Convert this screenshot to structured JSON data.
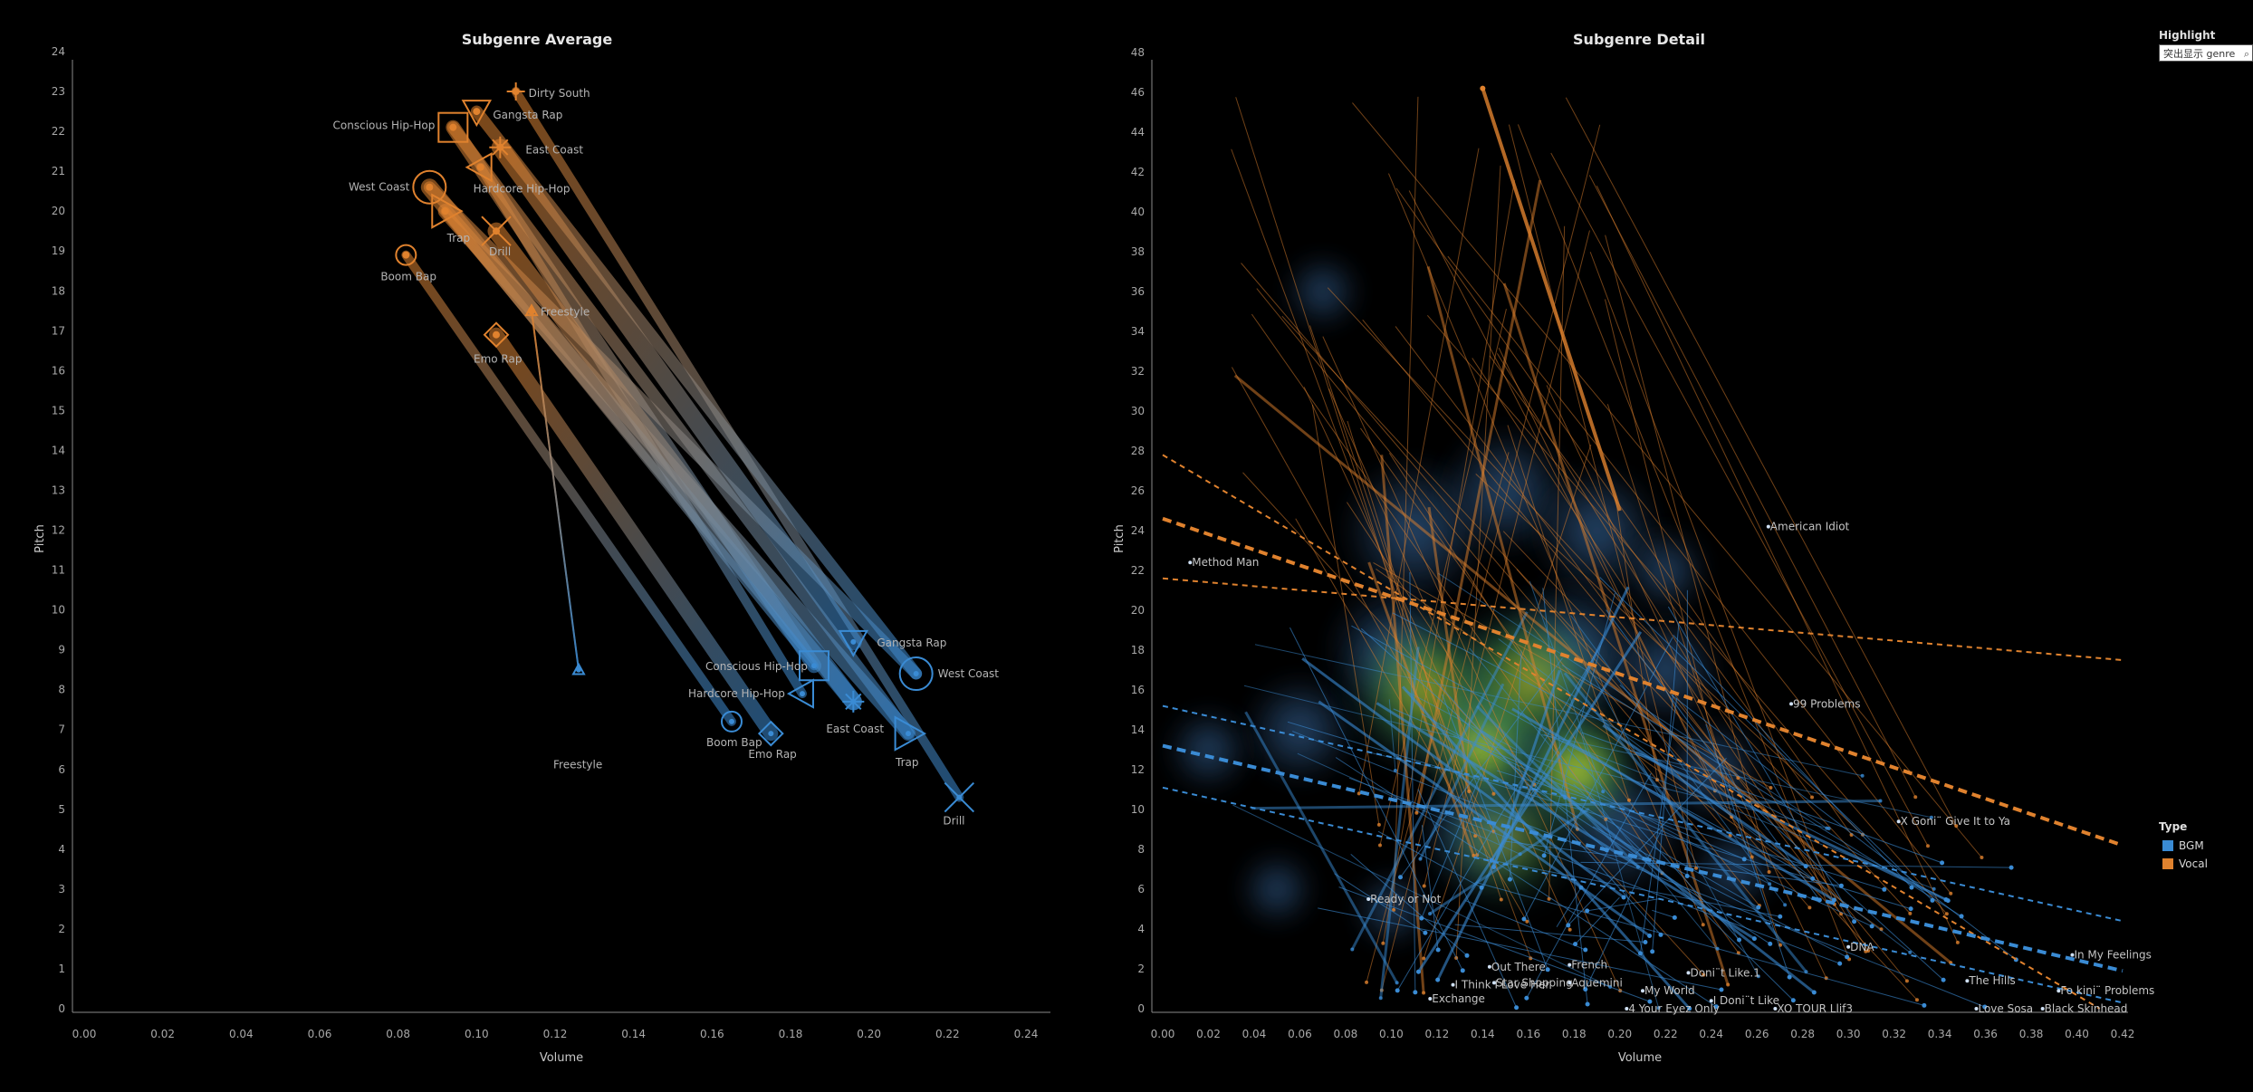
{
  "highlight": {
    "title": "Highlight",
    "placeholder": "突出显示 genre"
  },
  "legend": {
    "title": "Type",
    "items": [
      {
        "label": "BGM",
        "color": "#3a8bd4"
      },
      {
        "label": "Vocal",
        "color": "#e0822e"
      }
    ]
  },
  "colors": {
    "bgm": "#3a8bd4",
    "vocal": "#e0822e",
    "axis": "#8a8a8a",
    "background": "#000000"
  },
  "chart_data": [
    {
      "type": "scatter",
      "title": "Subgenre Average",
      "xlabel": "Volume",
      "ylabel": "Pitch",
      "xlim": [
        0,
        0.24
      ],
      "ylim": [
        0,
        24
      ],
      "x_ticks": [
        "0.00",
        "0.02",
        "0.04",
        "0.06",
        "0.08",
        "0.10",
        "0.12",
        "0.14",
        "0.16",
        "0.18",
        "0.20",
        "0.22",
        "0.24"
      ],
      "y_ticks": [
        "0",
        "1",
        "2",
        "3",
        "4",
        "5",
        "6",
        "7",
        "8",
        "9",
        "10",
        "11",
        "12",
        "13",
        "14",
        "15",
        "16",
        "17",
        "18",
        "19",
        "20",
        "21",
        "22",
        "23",
        "24"
      ],
      "series": [
        {
          "name": "Vocal",
          "points": [
            {
              "label": "Dirty South",
              "x": 0.11,
              "y": 23.0,
              "marker": "plus"
            },
            {
              "label": "Gangsta Rap",
              "x": 0.1,
              "y": 22.5,
              "marker": "triangle-down"
            },
            {
              "label": "Conscious Hip-Hop",
              "x": 0.094,
              "y": 22.1,
              "marker": "square"
            },
            {
              "label": "East Coast",
              "x": 0.106,
              "y": 21.6,
              "marker": "star"
            },
            {
              "label": "Hardcore Hip-Hop",
              "x": 0.101,
              "y": 21.1,
              "marker": "triangle-left"
            },
            {
              "label": "West Coast",
              "x": 0.088,
              "y": 20.6,
              "marker": "circle"
            },
            {
              "label": "Trap",
              "x": 0.092,
              "y": 20.0,
              "marker": "triangle-right"
            },
            {
              "label": "Drill",
              "x": 0.105,
              "y": 19.5,
              "marker": "x"
            },
            {
              "label": "Boom Bap",
              "x": 0.082,
              "y": 18.9,
              "marker": "circle"
            },
            {
              "label": "Freestyle",
              "x": 0.114,
              "y": 17.5,
              "marker": "triangle-up"
            },
            {
              "label": "Emo Rap",
              "x": 0.105,
              "y": 16.9,
              "marker": "diamond"
            }
          ]
        },
        {
          "name": "BGM",
          "points": [
            {
              "label": "Gangsta Rap",
              "x": 0.196,
              "y": 9.2,
              "marker": "triangle-down"
            },
            {
              "label": "Conscious Hip-Hop",
              "x": 0.186,
              "y": 8.6,
              "marker": "square"
            },
            {
              "label": "West Coast",
              "x": 0.212,
              "y": 8.4,
              "marker": "circle"
            },
            {
              "label": "Hardcore Hip-Hop",
              "x": 0.183,
              "y": 7.9,
              "marker": "triangle-left"
            },
            {
              "label": "East Coast",
              "x": 0.196,
              "y": 7.7,
              "marker": "star"
            },
            {
              "label": "Boom Bap",
              "x": 0.165,
              "y": 7.2,
              "marker": "circle"
            },
            {
              "label": "Emo Rap",
              "x": 0.175,
              "y": 6.9,
              "marker": "diamond"
            },
            {
              "label": "Trap",
              "x": 0.21,
              "y": 6.9,
              "marker": "triangle-right"
            },
            {
              "label": "Drill",
              "x": 0.223,
              "y": 5.3,
              "marker": "x"
            },
            {
              "label": "Freestyle",
              "x": 0.126,
              "y": 8.5,
              "marker": "triangle-up"
            }
          ]
        }
      ],
      "connections": [
        [
          "Dirty South",
          "Drill"
        ],
        [
          "Gangsta Rap",
          "West Coast"
        ],
        [
          "Conscious Hip-Hop",
          "Conscious Hip-Hop"
        ],
        [
          "East Coast",
          "Gangsta Rap"
        ],
        [
          "Hardcore Hip-Hop",
          "Hardcore Hip-Hop"
        ],
        [
          "West Coast",
          "West Coast"
        ],
        [
          "Trap",
          "Trap"
        ],
        [
          "Drill",
          "East Coast"
        ],
        [
          "Boom Bap",
          "Boom Bap"
        ],
        [
          "Freestyle",
          "Freestyle"
        ],
        [
          "Emo Rap",
          "Emo Rap"
        ],
        [
          "West Coast",
          "East Coast"
        ],
        [
          "Trap",
          "Conscious Hip-Hop"
        ],
        [
          "Conscious Hip-Hop",
          "Trap"
        ]
      ]
    },
    {
      "type": "scatter",
      "title": "Subgenre Detail",
      "xlabel": "Volume",
      "ylabel": "Pitch",
      "xlim": [
        0,
        0.42
      ],
      "ylim": [
        0,
        48
      ],
      "x_ticks": [
        "0.00",
        "0.02",
        "0.04",
        "0.06",
        "0.08",
        "0.10",
        "0.12",
        "0.14",
        "0.16",
        "0.18",
        "0.20",
        "0.22",
        "0.24",
        "0.26",
        "0.28",
        "0.30",
        "0.32",
        "0.34",
        "0.36",
        "0.38",
        "0.40",
        "0.42"
      ],
      "y_ticks": [
        "0",
        "2",
        "4",
        "6",
        "8",
        "10",
        "12",
        "14",
        "16",
        "18",
        "20",
        "22",
        "24",
        "26",
        "28",
        "30",
        "32",
        "34",
        "36",
        "38",
        "40",
        "42",
        "44",
        "46",
        "48"
      ],
      "labeled_points": [
        {
          "label": "American Idiot",
          "x": 0.265,
          "y": 24.2
        },
        {
          "label": "Method Man",
          "x": 0.012,
          "y": 22.4
        },
        {
          "label": "99 Problems",
          "x": 0.275,
          "y": 15.3
        },
        {
          "label": "X Goni¨ Give It to Ya",
          "x": 0.322,
          "y": 9.4
        },
        {
          "label": "Ready or Not",
          "x": 0.09,
          "y": 5.5
        },
        {
          "label": "DNA",
          "x": 0.3,
          "y": 3.1
        },
        {
          "label": "In My Feelings",
          "x": 0.398,
          "y": 2.7
        },
        {
          "label": "Out There",
          "x": 0.143,
          "y": 2.1
        },
        {
          "label": "French",
          "x": 0.178,
          "y": 2.2
        },
        {
          "label": "Doni¨t Like.1",
          "x": 0.23,
          "y": 1.8
        },
        {
          "label": "The Hills",
          "x": 0.352,
          "y": 1.4
        },
        {
          "label": "I Think I Love Her",
          "x": 0.127,
          "y": 1.2
        },
        {
          "label": "Star Shopping",
          "x": 0.145,
          "y": 1.3
        },
        {
          "label": "Aquemini",
          "x": 0.178,
          "y": 1.3
        },
        {
          "label": "Fo kini¨ Problems",
          "x": 0.392,
          "y": 0.9
        },
        {
          "label": "My World",
          "x": 0.21,
          "y": 0.9
        },
        {
          "label": "Exchange",
          "x": 0.117,
          "y": 0.5
        },
        {
          "label": "I Doni¨t Like",
          "x": 0.24,
          "y": 0.4
        },
        {
          "label": "4 Your Eyez Only",
          "x": 0.203,
          "y": 0.0
        },
        {
          "label": "XO TOUR Llif3",
          "x": 0.268,
          "y": 0.0
        },
        {
          "label": "Love Sosa",
          "x": 0.356,
          "y": 0.0
        },
        {
          "label": "Black Skinhead",
          "x": 0.385,
          "y": 0.0
        }
      ],
      "trend_lines": [
        {
          "series": "Vocal",
          "from": [
            0.0,
            24.6
          ],
          "to": [
            0.42,
            8.2
          ],
          "style": "dashed-bold"
        },
        {
          "series": "Vocal",
          "from": [
            0.0,
            27.8
          ],
          "to": [
            0.41,
            0.0
          ],
          "style": "dashed"
        },
        {
          "series": "Vocal",
          "from": [
            0.0,
            21.6
          ],
          "to": [
            0.42,
            17.5
          ],
          "style": "dashed"
        },
        {
          "series": "BGM",
          "from": [
            0.0,
            13.2
          ],
          "to": [
            0.42,
            1.9
          ],
          "style": "dashed-bold"
        },
        {
          "series": "BGM",
          "from": [
            0.0,
            15.2
          ],
          "to": [
            0.42,
            4.4
          ],
          "style": "dashed"
        },
        {
          "series": "BGM",
          "from": [
            0.0,
            11.1
          ],
          "to": [
            0.42,
            0.3
          ],
          "style": "dashed"
        }
      ],
      "density_hotspots": [
        {
          "x": 0.14,
          "y": 13.2,
          "level": "high"
        },
        {
          "x": 0.181,
          "y": 12.0,
          "level": "high"
        },
        {
          "x": 0.115,
          "y": 16.0,
          "level": "mid"
        },
        {
          "x": 0.16,
          "y": 16.5,
          "level": "mid"
        },
        {
          "x": 0.15,
          "y": 8.5,
          "level": "low"
        }
      ]
    }
  ]
}
